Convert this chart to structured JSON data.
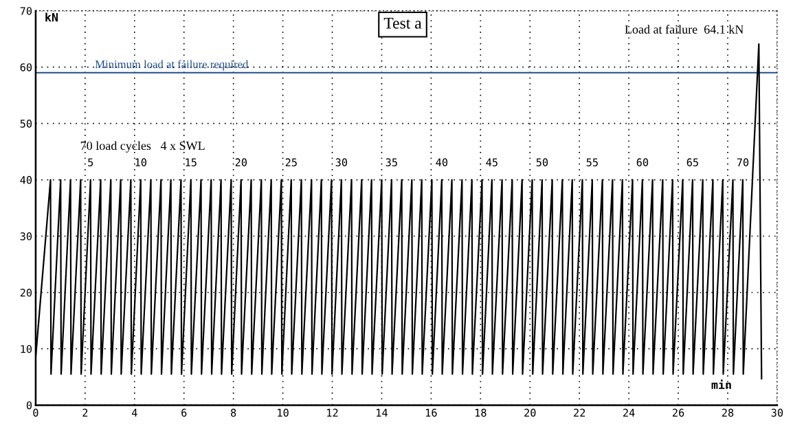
{
  "chart_data": {
    "type": "line",
    "xlabel": "min",
    "ylabel": "kN",
    "xlim": [
      0,
      30
    ],
    "ylim": [
      0,
      70
    ],
    "xticks": [
      0,
      2,
      4,
      6,
      8,
      10,
      12,
      14,
      16,
      18,
      20,
      22,
      24,
      26,
      28,
      30
    ],
    "yticks": [
      0,
      10,
      20,
      30,
      40,
      50,
      60,
      70
    ],
    "grid": true,
    "line_style": "solid",
    "marker": "none",
    "series": [
      {
        "color": "#000000",
        "x": [
          0,
          0.6,
          0.62,
          1.01,
          1.03,
          1.41,
          1.43,
          1.82,
          1.84,
          2.22,
          2.24,
          2.63,
          2.65,
          3.04,
          3.06,
          3.44,
          3.46,
          3.85,
          3.87,
          4.25,
          4.27,
          4.66,
          4.68,
          5.07,
          5.09,
          5.47,
          5.49,
          5.88,
          5.9,
          6.28,
          6.3,
          6.69,
          6.71,
          7.1,
          7.12,
          7.5,
          7.52,
          7.91,
          7.93,
          8.31,
          8.33,
          8.72,
          8.74,
          9.13,
          9.15,
          9.53,
          9.55,
          9.94,
          9.96,
          10.34,
          10.36,
          10.75,
          10.77,
          11.16,
          11.18,
          11.56,
          11.58,
          11.97,
          11.99,
          12.37,
          12.39,
          12.78,
          12.8,
          13.19,
          13.21,
          13.59,
          13.61,
          14.0,
          14.02,
          14.4,
          14.42,
          14.81,
          14.83,
          15.22,
          15.24,
          15.62,
          15.64,
          16.03,
          16.05,
          16.43,
          16.45,
          16.84,
          16.86,
          17.25,
          17.27,
          17.65,
          17.67,
          18.06,
          18.08,
          18.46,
          18.48,
          18.87,
          18.89,
          19.28,
          19.3,
          19.68,
          19.7,
          20.09,
          20.11,
          20.49,
          20.51,
          20.9,
          20.92,
          21.31,
          21.33,
          21.71,
          21.73,
          22.12,
          22.14,
          22.52,
          22.54,
          22.93,
          22.95,
          23.34,
          23.36,
          23.74,
          23.76,
          24.15,
          24.17,
          24.55,
          24.57,
          24.96,
          24.98,
          25.37,
          25.39,
          25.77,
          25.79,
          26.18,
          26.2,
          26.58,
          26.6,
          26.99,
          27.01,
          27.4,
          27.42,
          27.8,
          27.82,
          28.21,
          28.23,
          28.61,
          28.63,
          29.26,
          29.37
        ],
        "values": [
          8.5,
          40,
          5.5,
          40,
          5.5,
          40,
          5.5,
          40,
          5.5,
          40,
          5.5,
          40,
          5.5,
          40,
          5.5,
          40,
          5.5,
          40,
          5.5,
          40,
          5.5,
          40,
          5.5,
          40,
          5.5,
          40,
          5.5,
          40,
          5.5,
          40,
          5.5,
          40,
          5.5,
          40,
          5.5,
          40,
          5.5,
          40,
          5.5,
          40,
          5.5,
          40,
          5.5,
          40,
          5.5,
          40,
          5.5,
          40,
          5.5,
          40,
          5.5,
          40,
          5.5,
          40,
          5.5,
          40,
          5.5,
          40,
          5.5,
          40,
          5.5,
          40,
          5.5,
          40,
          5.5,
          40,
          5.5,
          40,
          5.5,
          40,
          5.5,
          40,
          5.5,
          40,
          5.5,
          40,
          5.5,
          40,
          5.5,
          40,
          5.5,
          40,
          5.5,
          40,
          5.5,
          40,
          5.5,
          40,
          5.5,
          40,
          5.5,
          40,
          5.5,
          40,
          5.5,
          40,
          5.5,
          40,
          5.5,
          40,
          5.5,
          40,
          5.5,
          40,
          5.5,
          40,
          5.5,
          40,
          5.5,
          40,
          5.5,
          40,
          5.5,
          40,
          5.5,
          40,
          5.5,
          40,
          5.5,
          40,
          5.5,
          40,
          5.5,
          40,
          5.5,
          40,
          5.5,
          40,
          5.5,
          40,
          5.5,
          40,
          5.5,
          40,
          5.5,
          40,
          5.5,
          40,
          5.5,
          40,
          5.5,
          64.1,
          4.7
        ]
      }
    ],
    "ref_lines": [
      {
        "axis": "y",
        "value": 59,
        "label": "Minimum load at failure required",
        "color": "#1f4e8c",
        "line_style": "solid"
      }
    ],
    "annotations": [
      "Test a",
      "70 load cycles   4 x SWL",
      "Load at failure  64.1 kN",
      {
        "text": "5",
        "x": 2.22,
        "y": 40
      },
      {
        "text": "10",
        "x": 4.25,
        "y": 40
      },
      {
        "text": "15",
        "x": 6.28,
        "y": 40
      },
      {
        "text": "20",
        "x": 8.31,
        "y": 40
      },
      {
        "text": "25",
        "x": 10.34,
        "y": 40
      },
      {
        "text": "30",
        "x": 12.37,
        "y": 40
      },
      {
        "text": "35",
        "x": 14.4,
        "y": 40
      },
      {
        "text": "40",
        "x": 16.43,
        "y": 40
      },
      {
        "text": "45",
        "x": 18.46,
        "y": 40
      },
      {
        "text": "50",
        "x": 20.49,
        "y": 40
      },
      {
        "text": "55",
        "x": 22.52,
        "y": 40
      },
      {
        "text": "60",
        "x": 24.55,
        "y": 40
      },
      {
        "text": "65",
        "x": 26.58,
        "y": 40
      },
      {
        "text": "70",
        "x": 28.61,
        "y": 40
      }
    ]
  }
}
